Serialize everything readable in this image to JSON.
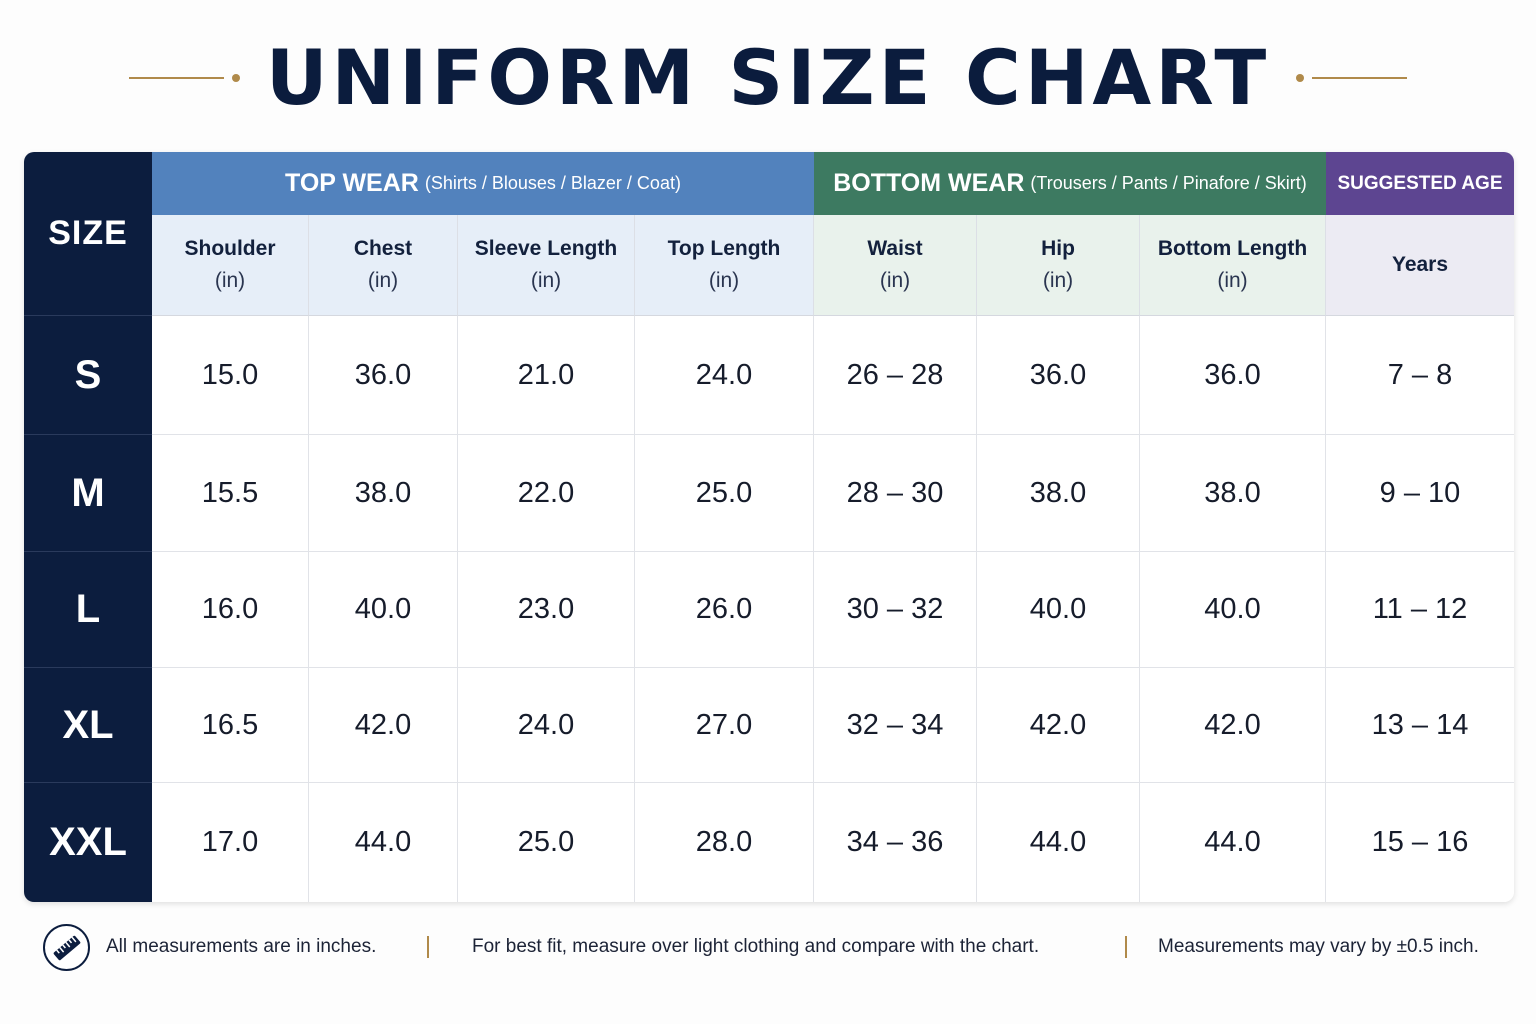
{
  "title": "UNIFORM SIZE CHART",
  "size_header": "SIZE",
  "groups": {
    "top": {
      "label": "TOP WEAR",
      "detail": "(Shirts / Blouses / Blazer / Coat)",
      "color": "#5282bd"
    },
    "bottom": {
      "label": "BOTTOM WEAR",
      "detail": "(Trousers / Pants / Pinafore / Skirt)",
      "color": "#3d7a61"
    },
    "age": {
      "label": "SUGGESTED AGE",
      "color": "#5d4591"
    }
  },
  "columns": [
    {
      "label": "Shoulder",
      "unit": "(in)"
    },
    {
      "label": "Chest",
      "unit": "(in)"
    },
    {
      "label": "Sleeve Length",
      "unit": "(in)"
    },
    {
      "label": "Top Length",
      "unit": "(in)"
    },
    {
      "label": "Waist",
      "unit": "(in)"
    },
    {
      "label": "Hip",
      "unit": "(in)"
    },
    {
      "label": "Bottom Length",
      "unit": "(in)"
    },
    {
      "label": "Years",
      "unit": ""
    }
  ],
  "rows": [
    {
      "size": "S",
      "values": [
        "15.0",
        "36.0",
        "21.0",
        "24.0",
        "26 – 28",
        "36.0",
        "36.0",
        "7 – 8"
      ]
    },
    {
      "size": "M",
      "values": [
        "15.5",
        "38.0",
        "22.0",
        "25.0",
        "28 – 30",
        "38.0",
        "38.0",
        "9 – 10"
      ]
    },
    {
      "size": "L",
      "values": [
        "16.0",
        "40.0",
        "23.0",
        "26.0",
        "30 – 32",
        "40.0",
        "40.0",
        "11 – 12"
      ]
    },
    {
      "size": "XL",
      "values": [
        "16.5",
        "42.0",
        "24.0",
        "27.0",
        "32 – 34",
        "42.0",
        "42.0",
        "13 – 14"
      ]
    },
    {
      "size": "XXL",
      "values": [
        "17.0",
        "44.0",
        "25.0",
        "28.0",
        "34 – 36",
        "44.0",
        "44.0",
        "15 – 16"
      ]
    }
  ],
  "footer": {
    "icon": "ruler-icon",
    "notes": [
      "All measurements are in inches.",
      "For best fit, measure over light clothing and compare with the chart.",
      "Measurements may vary by ±0.5 inch."
    ]
  }
}
